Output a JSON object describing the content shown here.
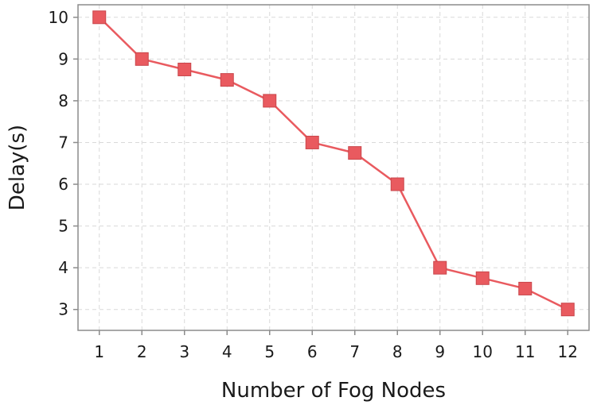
{
  "chart_data": {
    "type": "line",
    "title": "",
    "xlabel": "Number of Fog Nodes",
    "ylabel": "Delay(s)",
    "x": [
      1,
      2,
      3,
      4,
      5,
      6,
      7,
      8,
      9,
      10,
      11,
      12
    ],
    "series": [
      {
        "values": [
          10,
          9,
          8.75,
          8.5,
          8,
          7,
          6.75,
          6,
          4,
          3.75,
          3.5,
          3
        ]
      }
    ],
    "xlim": [
      0.5,
      12.5
    ],
    "ylim": [
      2.5,
      10.3
    ],
    "yticks": [
      3,
      4,
      5,
      6,
      7,
      8,
      9,
      10
    ],
    "grid": true,
    "legend": "none",
    "marker": "square",
    "colors": {
      "series": "#e95a5f",
      "marker_stroke": "#c9464b",
      "frame": "#8c8c8c"
    }
  }
}
